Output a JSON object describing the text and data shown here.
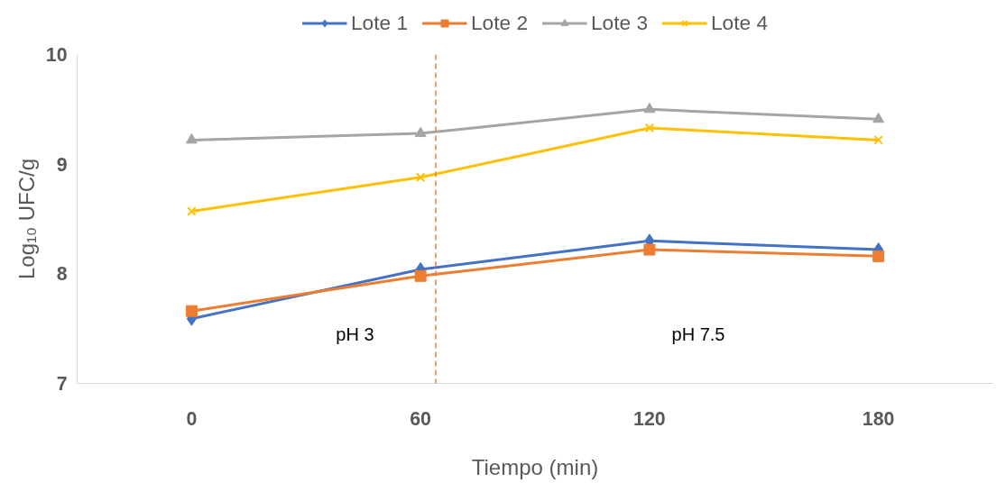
{
  "chart_data": {
    "type": "line",
    "xlabel": "Tiempo (min)",
    "ylabel": "Log₁₀ UFC/g",
    "x": [
      0,
      60,
      120,
      180
    ],
    "xlim": [
      -30,
      210
    ],
    "xticks": [
      0,
      60,
      120,
      180
    ],
    "ylim": [
      7,
      10
    ],
    "yticks": [
      7,
      8,
      9,
      10
    ],
    "series": [
      {
        "name": "Lote 1",
        "color": "#4472c4",
        "marker": "diamond",
        "values": [
          7.59,
          8.04,
          8.3,
          8.22
        ]
      },
      {
        "name": "Lote 2",
        "color": "#ed7d31",
        "marker": "square",
        "values": [
          7.66,
          7.98,
          8.22,
          8.16
        ]
      },
      {
        "name": "Lote 3",
        "color": "#a5a5a5",
        "marker": "triangle",
        "values": [
          9.22,
          9.28,
          9.5,
          9.41
        ]
      },
      {
        "name": "Lote 4",
        "color": "#ffc000",
        "marker": "cross",
        "values": [
          8.57,
          8.88,
          9.33,
          9.22
        ]
      }
    ],
    "ref_lines": [
      {
        "axis": "x",
        "value": 64,
        "color": "#ed7d31",
        "line_style": "dashed"
      }
    ],
    "annotations": [
      "pH 3",
      "pH 7.5"
    ],
    "grid": false,
    "legend": "top",
    "line_style": "solid"
  }
}
